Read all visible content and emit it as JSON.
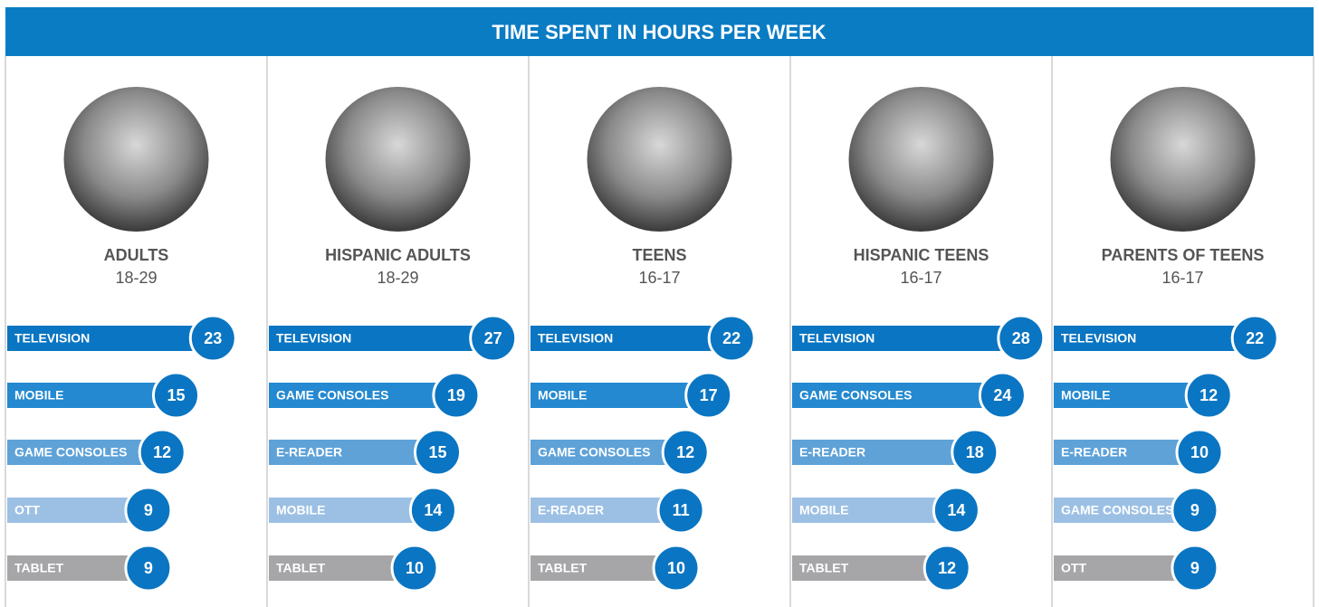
{
  "title": "TIME SPENT IN HOURS PER WEEK",
  "colors": [
    "#0a75c2",
    "#2489d0",
    "#5ea2d8",
    "#9cc0e4",
    "#a6a6a8"
  ],
  "panels": [
    {
      "title": "ADULTS",
      "subtitle": "18-29",
      "categories": [
        "TELEVISION",
        "MOBILE",
        "GAME CONSOLES",
        "OTT",
        "TABLET"
      ],
      "values": [
        23,
        15,
        12,
        9,
        9
      ]
    },
    {
      "title": "HISPANIC ADULTS",
      "subtitle": "18-29",
      "categories": [
        "TELEVISION",
        "GAME CONSOLES",
        "E-READER",
        "MOBILE",
        "TABLET"
      ],
      "values": [
        27,
        19,
        15,
        14,
        10
      ]
    },
    {
      "title": "TEENS",
      "subtitle": "16-17",
      "categories": [
        "TELEVISION",
        "MOBILE",
        "GAME CONSOLES",
        "E-READER",
        "TABLET"
      ],
      "values": [
        22,
        17,
        12,
        11,
        10
      ]
    },
    {
      "title": "HISPANIC TEENS",
      "subtitle": "16-17",
      "categories": [
        "TELEVISION",
        "GAME CONSOLES",
        "E-READER",
        "MOBILE",
        "TABLET"
      ],
      "values": [
        28,
        24,
        18,
        14,
        12
      ]
    },
    {
      "title": "PARENTS OF TEENS",
      "subtitle": "16-17",
      "categories": [
        "TELEVISION",
        "MOBILE",
        "E-READER",
        "GAME CONSOLES",
        "OTT"
      ],
      "values": [
        22,
        12,
        10,
        9,
        9
      ]
    }
  ]
}
